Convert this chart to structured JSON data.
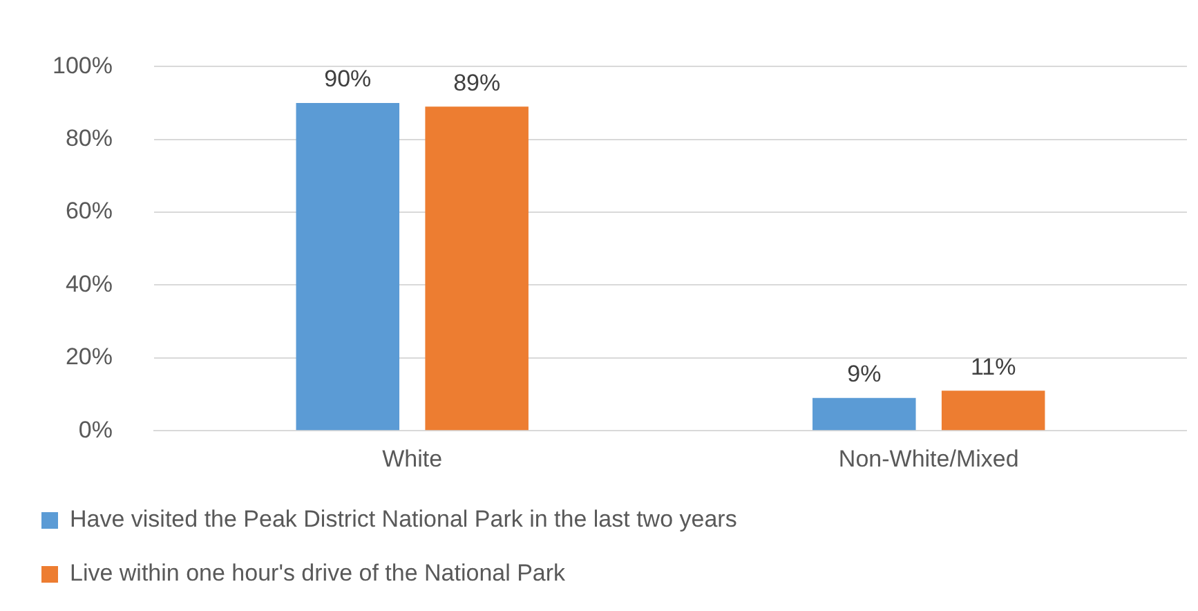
{
  "chart_data": {
    "type": "bar",
    "categories": [
      "White",
      "Non-White/Mixed"
    ],
    "series": [
      {
        "name": "Have visited the Peak District National Park in the last two years",
        "color": "#5b9bd5",
        "values": [
          90,
          9
        ],
        "value_labels": [
          "90%",
          "9%"
        ]
      },
      {
        "name": "Live within one hour's drive of the National Park",
        "color": "#ed7d31",
        "values": [
          89,
          11
        ],
        "value_labels": [
          "89%",
          "11%"
        ]
      }
    ],
    "ylim": [
      0,
      100
    ],
    "yticks": [
      {
        "value": 0,
        "label": "0%"
      },
      {
        "value": 20,
        "label": "20%"
      },
      {
        "value": 40,
        "label": "40%"
      },
      {
        "value": 60,
        "label": "60%"
      },
      {
        "value": 80,
        "label": "80%"
      },
      {
        "value": 100,
        "label": "100%"
      }
    ],
    "grid": "y",
    "legend": "bottom"
  }
}
